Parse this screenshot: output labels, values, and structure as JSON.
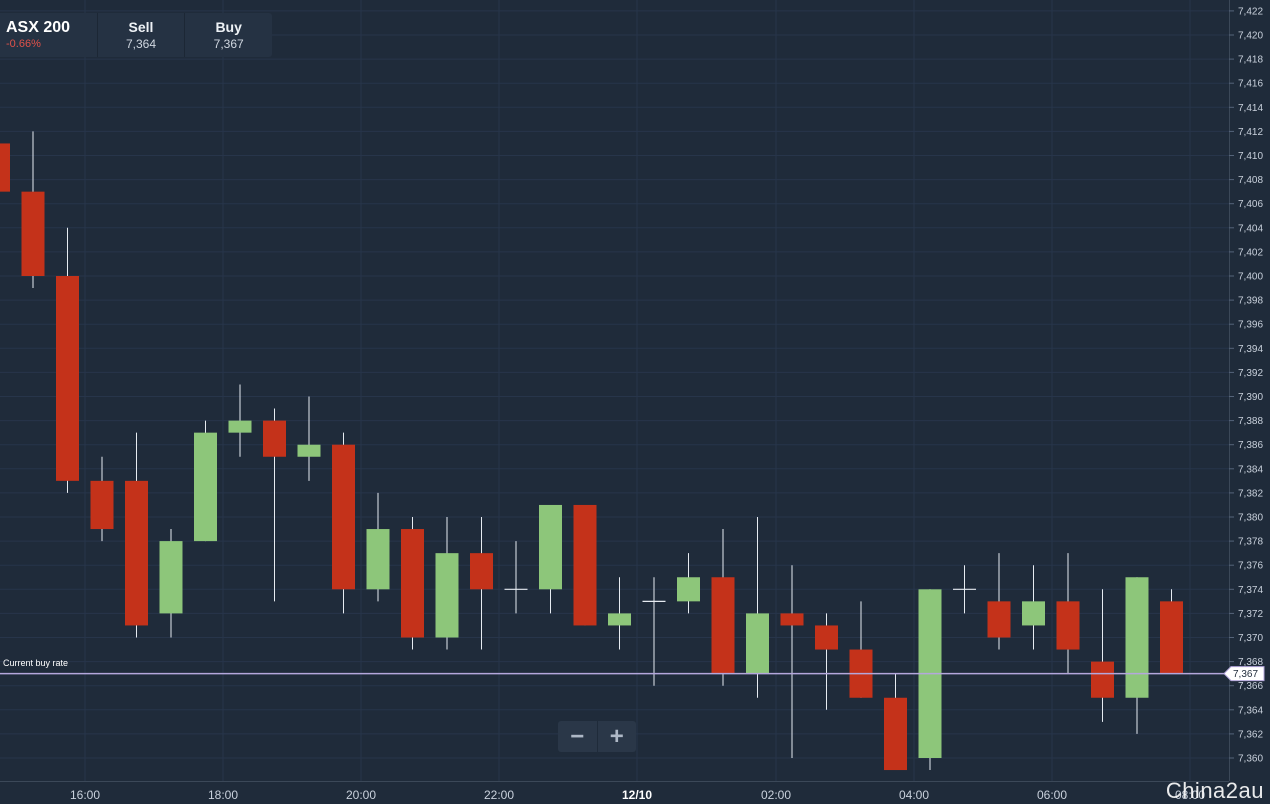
{
  "instrument": {
    "name": "ASX 200",
    "change": "-0.66%"
  },
  "prices": {
    "sell_label": "Sell",
    "sell_value": "7,364",
    "buy_label": "Buy",
    "buy_value": "7,367"
  },
  "current_rate": {
    "label": "Current buy rate",
    "value": 7367,
    "value_text": "7,367"
  },
  "zoom": {
    "minus_symbol": "−",
    "plus_symbol": "+"
  },
  "watermark": "China2au",
  "colors": {
    "background": "#1f2b3a",
    "up": "#8dc67a",
    "down": "#c4321a",
    "rate_line": "#b4a7dc"
  },
  "chart_data": {
    "type": "candlestick",
    "ylim": [
      7358,
      7423
    ],
    "y_ticks": [
      7360,
      7362,
      7364,
      7366,
      7368,
      7370,
      7372,
      7374,
      7376,
      7378,
      7380,
      7382,
      7384,
      7386,
      7388,
      7390,
      7392,
      7394,
      7396,
      7398,
      7400,
      7402,
      7404,
      7406,
      7408,
      7410,
      7412,
      7414,
      7416,
      7418,
      7420,
      7422
    ],
    "x_ticks": [
      "16:00",
      "18:00",
      "20:00",
      "22:00",
      "12/10",
      "02:00",
      "04:00",
      "06:00",
      "08:00"
    ],
    "candles": [
      {
        "o": 7411,
        "h": 7411,
        "l": 7406,
        "c": 7407
      },
      {
        "o": 7407,
        "h": 7412,
        "l": 7399,
        "c": 7400
      },
      {
        "o": 7400,
        "h": 7404,
        "l": 7382,
        "c": 7383
      },
      {
        "o": 7383,
        "h": 7385,
        "l": 7378,
        "c": 7379
      },
      {
        "o": 7383,
        "h": 7387,
        "l": 7370,
        "c": 7371
      },
      {
        "o": 7372,
        "h": 7379,
        "l": 7370,
        "c": 7378
      },
      {
        "o": 7378,
        "h": 7388,
        "l": 7378,
        "c": 7387
      },
      {
        "o": 7387,
        "h": 7391,
        "l": 7385,
        "c": 7388
      },
      {
        "o": 7388,
        "h": 7389,
        "l": 7373,
        "c": 7385
      },
      {
        "o": 7385,
        "h": 7390,
        "l": 7383,
        "c": 7386
      },
      {
        "o": 7386,
        "h": 7387,
        "l": 7372,
        "c": 7374
      },
      {
        "o": 7374,
        "h": 7382,
        "l": 7373,
        "c": 7379
      },
      {
        "o": 7379,
        "h": 7380,
        "l": 7369,
        "c": 7370
      },
      {
        "o": 7370,
        "h": 7380,
        "l": 7369,
        "c": 7377
      },
      {
        "o": 7377,
        "h": 7380,
        "l": 7369,
        "c": 7374
      },
      {
        "o": 7374,
        "h": 7378,
        "l": 7372,
        "c": 7374
      },
      {
        "o": 7374,
        "h": 7381,
        "l": 7372,
        "c": 7381
      },
      {
        "o": 7381,
        "h": 7381,
        "l": 7371,
        "c": 7371
      },
      {
        "o": 7371,
        "h": 7375,
        "l": 7369,
        "c": 7372
      },
      {
        "o": 7373,
        "h": 7375,
        "l": 7366,
        "c": 7373
      },
      {
        "o": 7373,
        "h": 7377,
        "l": 7372,
        "c": 7375
      },
      {
        "o": 7375,
        "h": 7379,
        "l": 7366,
        "c": 7367
      },
      {
        "o": 7367,
        "h": 7380,
        "l": 7365,
        "c": 7372
      },
      {
        "o": 7372,
        "h": 7376,
        "l": 7360,
        "c": 7371
      },
      {
        "o": 7371,
        "h": 7372,
        "l": 7364,
        "c": 7369
      },
      {
        "o": 7369,
        "h": 7373,
        "l": 7365,
        "c": 7365
      },
      {
        "o": 7365,
        "h": 7367,
        "l": 7359,
        "c": 7359
      },
      {
        "o": 7360,
        "h": 7374,
        "l": 7359,
        "c": 7374
      },
      {
        "o": 7374,
        "h": 7376,
        "l": 7372,
        "c": 7374
      },
      {
        "o": 7373,
        "h": 7377,
        "l": 7369,
        "c": 7370
      },
      {
        "o": 7371,
        "h": 7376,
        "l": 7369,
        "c": 7373
      },
      {
        "o": 7373,
        "h": 7377,
        "l": 7367,
        "c": 7369
      },
      {
        "o": 7368,
        "h": 7374,
        "l": 7363,
        "c": 7365
      },
      {
        "o": 7365,
        "h": 7375,
        "l": 7362,
        "c": 7375
      },
      {
        "o": 7373,
        "h": 7374,
        "l": 7367,
        "c": 7367
      }
    ]
  }
}
